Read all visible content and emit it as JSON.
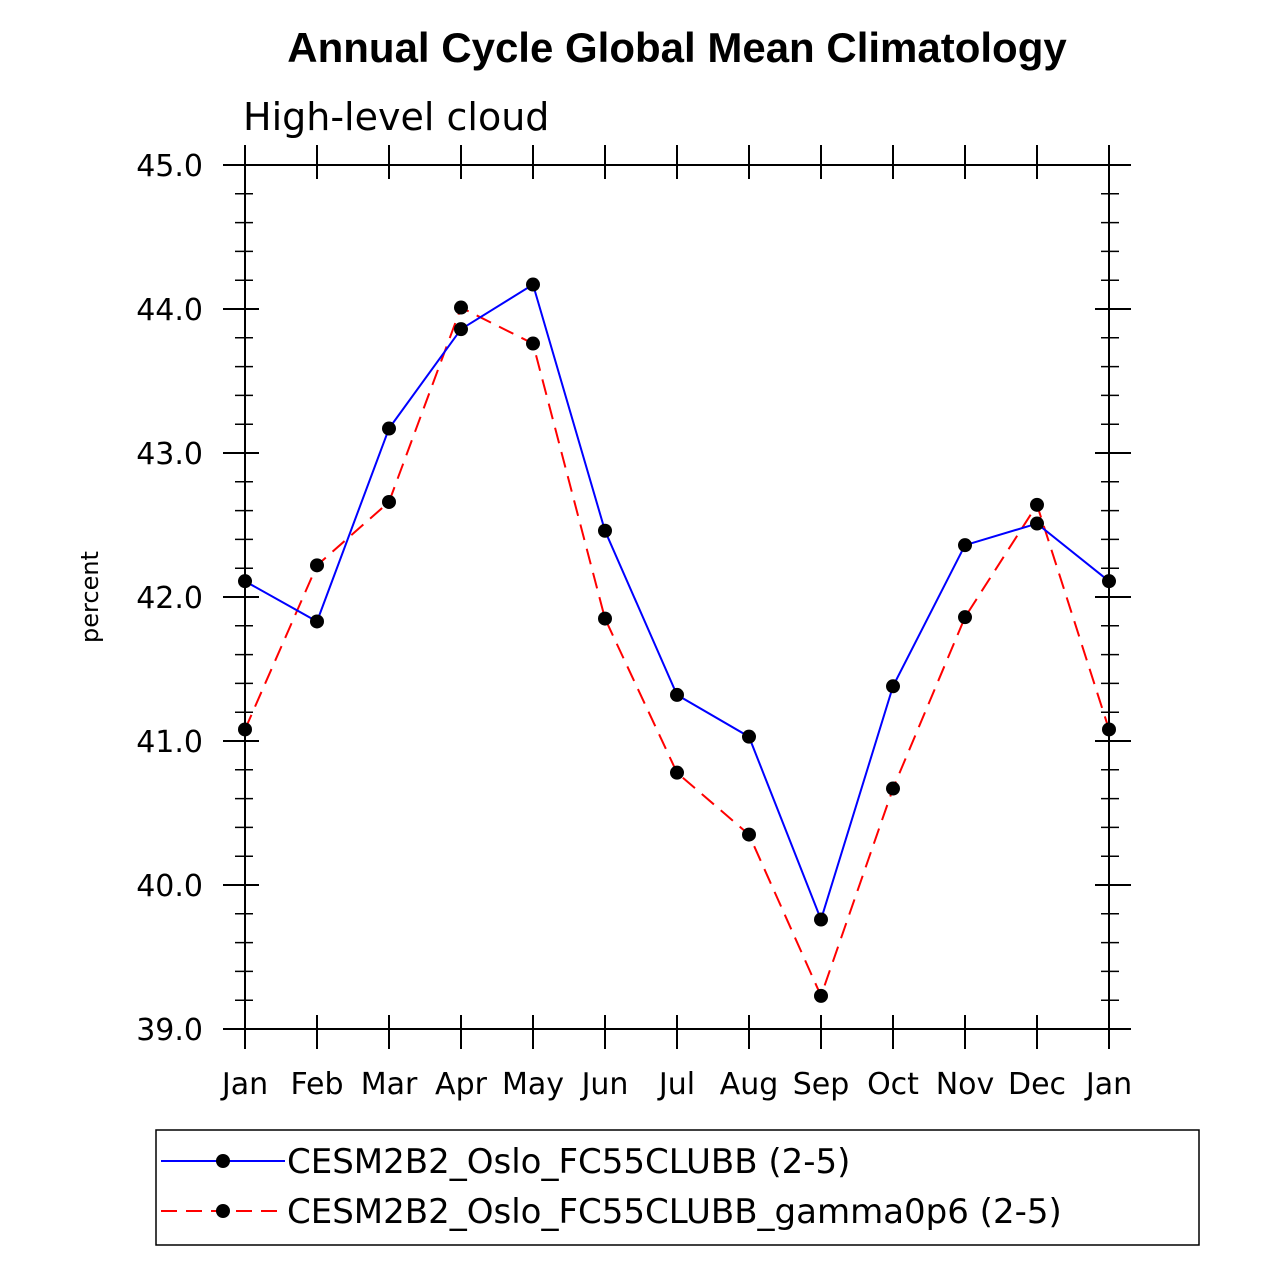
{
  "chart_data": {
    "type": "line",
    "title": "Annual Cycle Global Mean Climatology",
    "subtitle": "High-level cloud",
    "xlabel": "",
    "ylabel": "percent",
    "categories": [
      "Jan",
      "Feb",
      "Mar",
      "Apr",
      "May",
      "Jun",
      "Jul",
      "Aug",
      "Sep",
      "Oct",
      "Nov",
      "Dec",
      "Jan"
    ],
    "ylim": [
      39.0,
      45.0
    ],
    "yticks": [
      "39.0",
      "40.0",
      "41.0",
      "42.0",
      "43.0",
      "44.0",
      "45.0"
    ],
    "grid": false,
    "legend_position": "bottom",
    "series": [
      {
        "name": "CESM2B2_Oslo_FC55CLUBB (2-5)",
        "color": "#0000ff",
        "dash": "solid",
        "marker": "filled-circle",
        "values": [
          42.11,
          41.83,
          43.17,
          43.86,
          44.17,
          42.46,
          41.32,
          41.03,
          39.76,
          41.38,
          42.36,
          42.51,
          42.11
        ]
      },
      {
        "name": "CESM2B2_Oslo_FC55CLUBB_gamma0p6 (2-5)",
        "color": "#ff0000",
        "dash": "dashed",
        "marker": "filled-circle",
        "values": [
          41.08,
          42.22,
          42.66,
          44.01,
          43.76,
          41.85,
          40.78,
          40.35,
          39.23,
          40.67,
          41.86,
          42.64,
          41.08
        ]
      }
    ]
  }
}
